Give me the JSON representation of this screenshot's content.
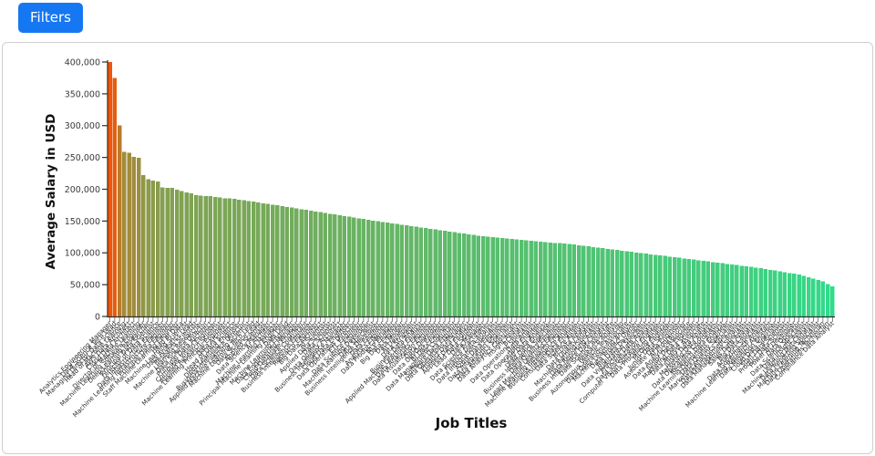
{
  "filters_button": {
    "label": "Filters",
    "color": "#1677F3"
  },
  "card": {
    "border_color": "#cfcfcf",
    "background": "#ffffff"
  },
  "chart_data": {
    "type": "bar",
    "title": "",
    "xlabel": "Job Titles",
    "ylabel": "Average Salary in USD",
    "ylim": [
      0,
      400000
    ],
    "yticks": [
      0,
      50000,
      100000,
      150000,
      200000,
      250000,
      300000,
      350000,
      400000
    ],
    "grid": false,
    "legend": false,
    "bar_color_scale": {
      "high": "#F25405",
      "low": "#2EDC8C",
      "mapped_to": "value"
    },
    "axis_color": "#303030",
    "tick_label_color": "#3a3a3a",
    "categories": [
      "Analytics Engineering Manager",
      "Data Science Tech Lead",
      "Managing Director Data Science",
      "Head of Machine Learning",
      "AWS Data Architect",
      "Cloud Data Architect",
      "Director of Machine Learning",
      "Machine Learning Software Engineer",
      "Deep Learning Researcher",
      "Principal Data Scientist",
      "Director of Data Science",
      "Data Infrastructure Engineer",
      "Machine Learning Infrastructure Engineer",
      "Principal Data Engineer",
      "Staff Machine Learning Engineer",
      "Head of Data",
      "Machine Learning Scientist",
      "Data Analytics Lead",
      "Research Scientist",
      "Machine Learning Researcher",
      "Data Science Director",
      "Principal Data Architect",
      "Computer Vision Engineer",
      "Applied Research Scientist",
      "Machine Learning Principal Engineer",
      "Data Architect",
      "Head of Data Science",
      "Deep Learning Engineer",
      "Business Intelligence Director",
      "Applied Machine Learning Scientist",
      "Machine Learning Tech Lead",
      "Data Science Lead",
      "Applied Scientist",
      "Data Science Manager",
      "AI Architect",
      "Machine Learning Manager",
      "Principal Machine Learning Engineer",
      "Data Lead",
      "Machine Learning Engineer",
      "Data Engineering Manager",
      "Cloud Database Engineer",
      "Data Science Consultant",
      "Business Intelligence Engineer",
      "Research Engineer",
      "Big Data Architect",
      "AI Scientist",
      "Applied Data Scientist",
      "Data Scientist",
      "Data Quality Architect",
      "Business Intelligence Manager",
      "Cloud Data Engineer",
      "Data Operations Director",
      "ETL Engineer",
      "Data Science Engineer",
      "Machine Learning Developer",
      "Data Specialist",
      "Business Intelligence Developer",
      "Data Engineer",
      "Analytics Engineer",
      "Data Product Manager",
      "NLP Engineer",
      "Big Data Engineer",
      "Data Modeler",
      "AI Developer",
      "Data Strategist",
      "Business Data Analyst",
      "Applied Machine Learning Engineer",
      "Data Analytics Engineer",
      "Data Visualization Engineer",
      "Data Developer",
      "Data DevOps Engineer",
      "BI Data Engineer",
      "Data Management Consultant",
      "Software Data Engineer",
      "Data Operations Manager",
      "Product Data Analyst",
      "Applied Data Engineer",
      "Lead Data Scientist",
      "Data Manager",
      "Data Science Practitioner",
      "Finance Data Analyst",
      "Data Integration Specialist",
      "Azure Data Engineer",
      "Data Integration Engineer",
      "Data Analytics Specialist",
      "Data Analytics Consultant",
      "Insight Analyst",
      "BI Analyst",
      "Data Operations Specialist",
      "Data Analyst",
      "Data Operations Engineer",
      "Staff Data Analyst",
      "Lead Data Engineer",
      "Business Intelligence Specialist",
      "Data Quality Engineer",
      "Lead Machine Learning Engineer",
      "Machine Learning Research Engineer",
      "Business Intelligence Analyst",
      "Consultant Data Engineer",
      "Data Science Analyst",
      "BI Data Analyst",
      "Data Quality Analyst",
      "Machine Learning Specialist",
      "Data Reporting Analyst",
      "Business Intelligence Data Analyst",
      "Data Science Associate",
      "Research Analyst",
      "Autonomous Vehicle Technician",
      "Data Operations Associate",
      "Machine Learning Analyst",
      "Data Product Owner",
      "Big Data Developer",
      "Data Visualization Specialist",
      "Principal Data Analyst",
      "Data Visualization Analyst",
      "Computer Vision Software Engineer",
      "Data Processing Analyst",
      "MLOps Engineer",
      "Junior Data Scientist",
      "Associate Data Engineer",
      "AI Programmer",
      "Data Analytics Associate",
      "Junior Data Engineer",
      "Marketing Data Scientist",
      "Data Analyst Associate",
      "Junior Data Analyst",
      "Marketing Data Analyst",
      "Data Operations Coordinator",
      "Research Data Analyst",
      "Machine Learning Operations Engineer",
      "Data Quality Specialist",
      "Marketing Analytics Specialist",
      "Data Management Analyst",
      "Data Management Specialist",
      "Sales Data Analyst",
      "Big Data Analyst",
      "Analytics Specialist",
      "Data Governance Analyst",
      "Machine Learning Research Assistant",
      "Data Migration Engineer",
      "Cloud Data Specialist",
      "Staff Data Scientist",
      "Product Data Scientist",
      "Power BI Developer",
      "Data Operator",
      "Data Science Specialist",
      "Data Insight Analyst",
      "Machine Learning Data Analyst",
      "Data Reporting Specialist",
      "Machine Learning Technician",
      "Data Operations Technician",
      "Compliance Data Analyst"
    ],
    "values": [
      399880,
      375000,
      300500,
      258500,
      257500,
      251000,
      249500,
      222500,
      216000,
      213500,
      212500,
      203000,
      202500,
      202000,
      199000,
      197000,
      195000,
      193500,
      191000,
      190000,
      189500,
      189000,
      188000,
      187000,
      186000,
      185500,
      184800,
      183700,
      182500,
      181400,
      180300,
      179100,
      178000,
      176900,
      175700,
      174600,
      173400,
      172300,
      171100,
      170000,
      168800,
      167600,
      166400,
      165200,
      164000,
      162800,
      161600,
      160400,
      159200,
      158000,
      156800,
      155600,
      154400,
      153200,
      152000,
      150900,
      149800,
      148700,
      147700,
      146600,
      145500,
      144400,
      143300,
      142300,
      141200,
      140100,
      139000,
      137900,
      136900,
      135800,
      134700,
      133600,
      132500,
      131500,
      130400,
      129300,
      128200,
      127100,
      126000,
      125300,
      124600,
      123900,
      123300,
      122600,
      121900,
      121200,
      120500,
      119800,
      119200,
      118500,
      117800,
      117100,
      116400,
      115700,
      115100,
      114400,
      113700,
      113000,
      112100,
      111100,
      110200,
      109200,
      108300,
      107300,
      106400,
      105400,
      104500,
      103500,
      102600,
      101600,
      100700,
      99700,
      98800,
      97800,
      96900,
      95900,
      95000,
      94100,
      93100,
      92200,
      91200,
      90300,
      89300,
      88400,
      87400,
      86500,
      85500,
      84600,
      83600,
      82700,
      81700,
      80800,
      79800,
      78900,
      77900,
      77000,
      75800,
      74600,
      73300,
      72100,
      70900,
      69700,
      68400,
      67200,
      66000,
      63800,
      61600,
      59400,
      57200,
      55000,
      51000,
      47500
    ]
  }
}
